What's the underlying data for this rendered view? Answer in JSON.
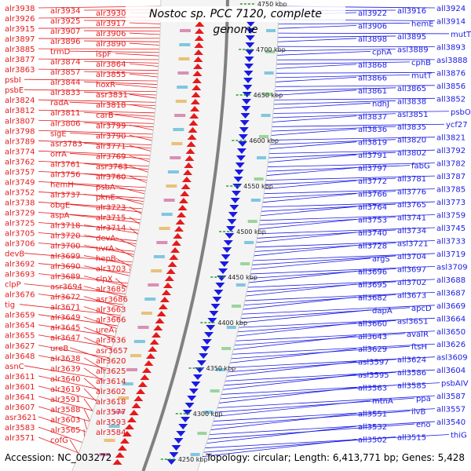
{
  "title": "Nostoc sp. PCC 7120, complete genome",
  "accession_text": "Accession: NC_003272",
  "summary_text": "Topology: circular; Length: 6,413,771 bp; Genes: 5,428",
  "colors": {
    "forward": "#e41a1c",
    "reverse": "#1a1ae4",
    "kbp_tick": "#2a9d2a",
    "backbone": "#808080"
  },
  "kbp_labels": [
    "4750 kbp",
    "4700 kbp",
    "4650 kbp",
    "4600 kbp",
    "4550 kbp",
    "4500 kbp",
    "4450 kbp",
    "4400 kbp",
    "4350 kbp",
    "4300 kbp",
    "4250 kbp"
  ],
  "left_labels": [
    "alr3938",
    "alr3934",
    "alr3930",
    "alr3926",
    "alr3925",
    "alr3917",
    "alr3915",
    "alr3907",
    "alr3906",
    "alr3897",
    "alr3896",
    "alr3890",
    "alr3885",
    "trmD",
    "ispF",
    "alr3877",
    "alr3874",
    "alr3864",
    "alr3863",
    "alr3857",
    "alr3855",
    "psbI",
    "alr3844",
    "hoxR",
    "psbE",
    "alr3833",
    "asr3831",
    "alr3824",
    "radA",
    "alr3818",
    "alr3812",
    "alr3811",
    "carB",
    "alr3807",
    "alr3806",
    "alr3799",
    "alr3798",
    "sigE",
    "alr3790",
    "alr3789",
    "asr3783",
    "alr3771",
    "alr3774",
    "orrA",
    "alr3769",
    "alr3762",
    "alr3761",
    "asr3763",
    "alr3757",
    "alr3756",
    "alr3760",
    "alr3749",
    "hemH",
    "psbA",
    "alr3752",
    "alr3737",
    "pknE",
    "alr3738",
    "obgE",
    "alr3723",
    "alr3729",
    "aspA",
    "alr3715",
    "alr3725",
    "alr3718",
    "alr3714",
    "alr3705",
    "alr3720",
    "devA",
    "alr3706",
    "alr3700",
    "uvrA",
    "devB",
    "alr3699",
    "hepB",
    "alr3692",
    "alr3690",
    "alr3703",
    "alr3693",
    "alr3689",
    "clpX",
    "clpP",
    "asr3694",
    "alr3685",
    "alr3676",
    "alr3672",
    "asr3686",
    "tig",
    "alr3671",
    "alr3663",
    "alr3659",
    "alr3649",
    "alr3666",
    "alr3654",
    "alr3645",
    "ureA",
    "alr3655",
    "alr3647",
    "alr3636",
    "alr3627",
    "ureB",
    "asr3657",
    "alr3648",
    "alr3638",
    "alr3620",
    "asnC",
    "alr3639",
    "alr3625",
    "alr3611",
    "alr3640",
    "alr3614",
    "alr3601",
    "alr3619",
    "alr3602",
    "alr3641",
    "alr3591",
    "alr3618",
    "alr3607",
    "alr3588",
    "alr3577",
    "asr3621",
    "alr3603",
    "alr3593",
    "alr3583",
    "alr3565",
    "alr3584",
    "alr3571",
    "cofG"
  ],
  "right_labels": [
    "all3924",
    "all3916",
    "all3922",
    "all3914",
    "hemE",
    "all3906",
    "mutT",
    "all3895",
    "all3898",
    "all3893",
    "asl3889",
    "cphA",
    "asl3888",
    "cphB",
    "all3868",
    "all3876",
    "mutT",
    "all3866",
    "all3856",
    "all3865",
    "all3861",
    "all3852",
    "all3838",
    "ndhJ",
    "psbO",
    "asl3851",
    "all3837",
    "ycf27",
    "all3835",
    "all3836",
    "all3821",
    "all3820",
    "all3819",
    "all3792",
    "all3802",
    "all3791",
    "all3782",
    "fabG",
    "all3797",
    "all3787",
    "all3781",
    "all3772",
    "all3785",
    "all3776",
    "all3766",
    "all3773",
    "all3765",
    "all3764",
    "all3759",
    "all3741",
    "all3753",
    "all3745",
    "all3734",
    "all3740",
    "all3733",
    "asl3721",
    "all3728",
    "all3719",
    "all3704",
    "argS",
    "asl3709",
    "all3697",
    "all3696",
    "all3688",
    "all3702",
    "all3695",
    "all3687",
    "all3673",
    "all3682",
    "all3669",
    "apcD",
    "dapA",
    "all3664",
    "asl3651",
    "all3660",
    "all3650",
    "avalR",
    "all3643",
    "all3626",
    "ftsH",
    "all3629",
    "asl3609",
    "all3624",
    "asl3597",
    "all3604",
    "all3586",
    "asl3595",
    "psbAIV",
    "all3585",
    "all3563",
    "all3587",
    "ppa",
    "mtnA",
    "all3557",
    "ilvB",
    "all3551",
    "all3540",
    "eno",
    "all3532",
    "thiG",
    "all3515",
    "all3502"
  ]
}
